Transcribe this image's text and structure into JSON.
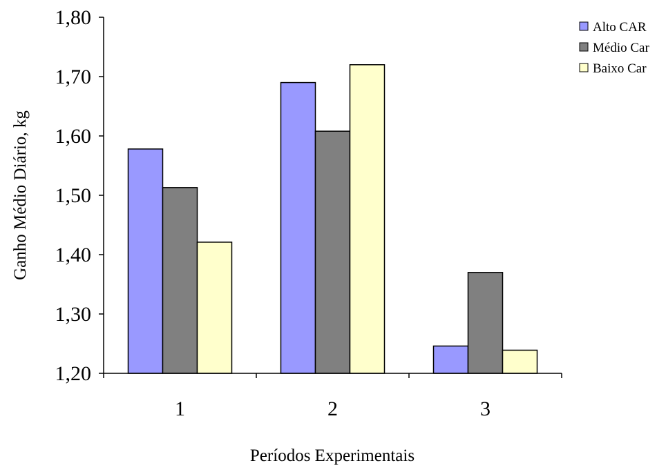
{
  "chart_data": {
    "type": "bar",
    "title": "",
    "xlabel": "Períodos Experimentais",
    "ylabel": "Ganho Médio Diário, kg",
    "categories": [
      "1",
      "2",
      "3"
    ],
    "series": [
      {
        "name": "Alto CAR",
        "color": "#9999ff",
        "values": [
          1.578,
          1.69,
          1.246
        ]
      },
      {
        "name": "Médio Car",
        "color": "#808080",
        "values": [
          1.513,
          1.608,
          1.37
        ]
      },
      {
        "name": "Baixo Car",
        "color": "#ffffcc",
        "values": [
          1.421,
          1.72,
          1.239
        ]
      }
    ],
    "ylim": [
      1.2,
      1.8
    ],
    "yticks": [
      "1,20",
      "1,30",
      "1,40",
      "1,50",
      "1,60",
      "1,70",
      "1,80"
    ],
    "grid": false,
    "legend_position": "top-right"
  }
}
